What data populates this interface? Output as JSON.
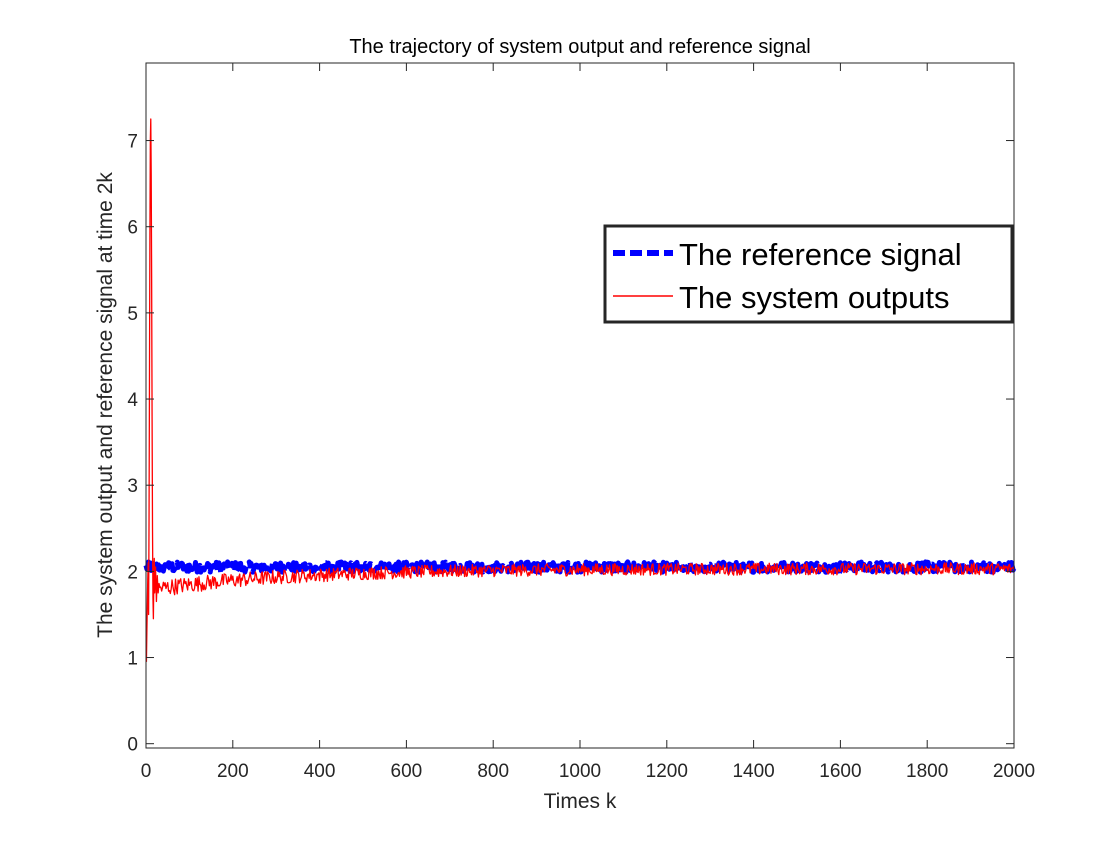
{
  "chart_data": {
    "type": "line",
    "title": "The trajectory of system output and reference signal",
    "xlabel": "Times k",
    "ylabel": "The system output and reference signal at time 2k",
    "xlim": [
      0,
      2000
    ],
    "ylim": [
      -0.05,
      7.9
    ],
    "xticks": [
      0,
      200,
      400,
      600,
      800,
      1000,
      1200,
      1400,
      1600,
      1800,
      2000
    ],
    "yticks": [
      0,
      1,
      2,
      3,
      4,
      5,
      6,
      7
    ],
    "grid": false,
    "box": true,
    "legend_position": "top-right",
    "series": [
      {
        "name": "The reference signal",
        "color": "#0000ff",
        "line_style": "dashed",
        "level": 2.05,
        "noise_amplitude": 0.06,
        "x_range": [
          0,
          2000
        ]
      },
      {
        "name": "The system outputs",
        "color": "#ff0000",
        "line_style": "solid",
        "transient": [
          [
            1,
            0.95
          ],
          [
            2,
            1.3
          ],
          [
            3,
            1.6
          ],
          [
            4,
            1.9
          ],
          [
            5,
            2.1
          ],
          [
            6,
            1.5
          ],
          [
            7,
            2.6
          ],
          [
            8,
            4.2
          ],
          [
            9,
            5.9
          ],
          [
            10,
            7.0
          ],
          [
            11,
            7.25
          ],
          [
            12,
            6.6
          ],
          [
            13,
            5.4
          ],
          [
            14,
            3.8
          ],
          [
            15,
            2.5
          ],
          [
            16,
            1.7
          ],
          [
            17,
            1.45
          ],
          [
            18,
            1.9
          ],
          [
            19,
            2.15
          ],
          [
            20,
            1.75
          ],
          [
            22,
            2.05
          ],
          [
            24,
            1.65
          ],
          [
            26,
            1.95
          ],
          [
            28,
            1.75
          ]
        ],
        "settle_from": 1.8,
        "settle_to": 2.03,
        "settle_time_constant": 320,
        "noise_amplitude_start": 0.1,
        "noise_amplitude_end": 0.07,
        "x_range": [
          0,
          2000
        ]
      }
    ]
  }
}
